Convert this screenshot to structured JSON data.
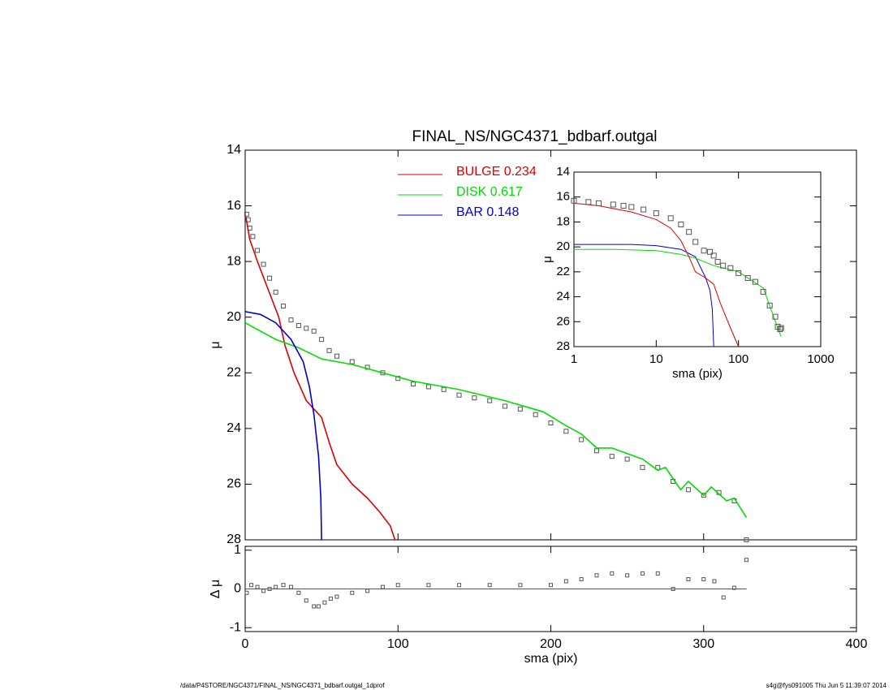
{
  "footer": {
    "left": "/data/P4STORE/NGC4371/FINAL_NS/NGC4371_bdbarf.outgal_1dprof",
    "right": "s4g@fys091005  Thu Jun  5 11:39:07 2014"
  },
  "chart_data": [
    {
      "type": "line",
      "title": "FINAL_NS/NGC4371_bdbarf.outgal",
      "y_label": "μ",
      "xlim": [
        0,
        400
      ],
      "xticks": [
        0,
        100,
        200,
        300,
        400
      ],
      "ylim": [
        28,
        14
      ],
      "yticks": [
        14,
        16,
        18,
        20,
        22,
        24,
        26,
        28
      ],
      "legend": "upper center",
      "series": [
        {
          "color": "#555555",
          "marker": "square",
          "x": [
            1,
            2,
            3,
            5,
            8,
            12,
            16,
            20,
            25,
            30,
            35,
            40,
            45,
            50,
            55,
            60,
            70,
            80,
            90,
            100,
            110,
            120,
            130,
            140,
            150,
            160,
            170,
            180,
            190,
            200,
            210,
            220,
            230,
            240,
            250,
            260,
            270,
            280,
            290,
            300,
            310,
            320,
            328
          ],
          "values": [
            16.3,
            16.5,
            16.8,
            17.1,
            17.6,
            18.1,
            18.6,
            19.1,
            19.6,
            20.1,
            20.3,
            20.4,
            20.5,
            20.8,
            21.2,
            21.4,
            21.6,
            21.8,
            22.0,
            22.2,
            22.4,
            22.5,
            22.6,
            22.8,
            22.9,
            23.0,
            23.2,
            23.3,
            23.5,
            23.8,
            24.1,
            24.4,
            24.8,
            25.0,
            25.1,
            25.4,
            25.4,
            25.9,
            26.2,
            26.4,
            26.3,
            26.6,
            28.0
          ]
        },
        {
          "name": "BULGE  0.234",
          "color": "#dd0000",
          "x": [
            0.5,
            3,
            8,
            15,
            22,
            26,
            32,
            40,
            50,
            55,
            60,
            70,
            80,
            88,
            95,
            98
          ],
          "values": [
            16.4,
            17.2,
            18.0,
            19.0,
            20.0,
            21.0,
            22.0,
            23.0,
            23.6,
            24.5,
            25.3,
            26.0,
            26.5,
            27.0,
            27.5,
            28.0
          ]
        },
        {
          "name": "DISK  0.617",
          "color": "#00dd00",
          "x": [
            0,
            10,
            20,
            35,
            50,
            70,
            90,
            110,
            140,
            170,
            195,
            210,
            220,
            230,
            240,
            250,
            260,
            270,
            275,
            285,
            290,
            300,
            305,
            315,
            320,
            328
          ],
          "values": [
            20.2,
            20.5,
            20.8,
            21.1,
            21.5,
            21.7,
            22.0,
            22.3,
            22.6,
            23.0,
            23.4,
            23.9,
            24.2,
            24.7,
            24.7,
            24.9,
            25.1,
            25.5,
            25.4,
            26.2,
            25.9,
            26.4,
            26.1,
            26.6,
            26.5,
            27.2
          ]
        },
        {
          "name": "BAR  0.148",
          "color": "#0000cc",
          "x": [
            0,
            10,
            20,
            30,
            38,
            42,
            45,
            48,
            49.5,
            50
          ],
          "values": [
            19.8,
            19.9,
            20.2,
            20.8,
            21.6,
            22.5,
            23.5,
            25.0,
            26.5,
            28.0
          ]
        }
      ]
    },
    {
      "type": "scatter",
      "x_label": "sma (pix)",
      "y_label": "Δ μ",
      "color": "#555555",
      "xlim": [
        0,
        400
      ],
      "xticks": [
        0,
        100,
        200,
        300,
        400
      ],
      "ylim": [
        -1.1,
        1.1
      ],
      "yticks": [
        -1,
        0,
        1
      ],
      "x": [
        1,
        4,
        8,
        12,
        16,
        20,
        25,
        30,
        35,
        40,
        45,
        48,
        52,
        56,
        60,
        70,
        80,
        90,
        100,
        120,
        140,
        160,
        180,
        200,
        210,
        220,
        230,
        240,
        250,
        260,
        270,
        280,
        290,
        300,
        307,
        313,
        320,
        328
      ],
      "values": [
        -0.1,
        0.1,
        0.05,
        -0.05,
        0.0,
        0.05,
        0.1,
        0.05,
        -0.1,
        -0.3,
        -0.45,
        -0.45,
        -0.35,
        -0.25,
        -0.2,
        -0.1,
        -0.05,
        0.05,
        0.1,
        0.1,
        0.1,
        0.1,
        0.1,
        0.1,
        0.2,
        0.25,
        0.35,
        0.4,
        0.35,
        0.4,
        0.4,
        0,
        0.25,
        0.25,
        0.2,
        -0.22,
        0.03,
        0.75
      ]
    },
    {
      "type": "line",
      "x_label": "sma (pix)",
      "y_label": "μ",
      "log_x": true,
      "xlim": [
        1,
        1000
      ],
      "xticks": [
        1,
        10,
        100,
        1000
      ],
      "ylim": [
        28,
        14
      ],
      "yticks": [
        14,
        16,
        18,
        20,
        22,
        24,
        26,
        28
      ],
      "series": [
        {
          "color": "#0000cc",
          "x": [
            1,
            5,
            10,
            20,
            30,
            40,
            45,
            48,
            50
          ],
          "values": [
            19.8,
            19.8,
            19.9,
            20.2,
            20.8,
            22.5,
            23.5,
            25.0,
            28.0
          ]
        },
        {
          "color": "#00dd00",
          "x": [
            1,
            3,
            10,
            20,
            30,
            50,
            100,
            200,
            300,
            330
          ],
          "values": [
            20.2,
            20.2,
            20.3,
            20.6,
            20.9,
            21.5,
            22.0,
            23.3,
            26.5,
            27.2
          ]
        },
        {
          "color": "#dd0000",
          "x": [
            1,
            2,
            5,
            10,
            15,
            20,
            25,
            30,
            40,
            50,
            60,
            80,
            100
          ],
          "values": [
            16.5,
            16.7,
            17.2,
            17.8,
            18.5,
            19.5,
            20.8,
            22.0,
            22.5,
            23.0,
            24.5,
            26.5,
            28.0
          ]
        },
        {
          "color": "#555555",
          "marker": "square",
          "x": [
            1,
            1.5,
            2,
            3,
            4,
            5,
            7,
            10,
            15,
            20,
            25,
            30,
            38,
            45,
            50,
            56,
            65,
            80,
            100,
            130,
            160,
            200,
            240,
            280,
            300,
            320,
            330
          ],
          "values": [
            16.3,
            16.4,
            16.5,
            16.6,
            16.7,
            16.8,
            17.0,
            17.3,
            17.7,
            18.2,
            18.8,
            19.6,
            20.3,
            20.4,
            20.7,
            21.2,
            21.5,
            21.7,
            22.1,
            22.5,
            22.8,
            23.6,
            24.7,
            25.6,
            26.4,
            26.6,
            26.5
          ]
        }
      ]
    }
  ]
}
